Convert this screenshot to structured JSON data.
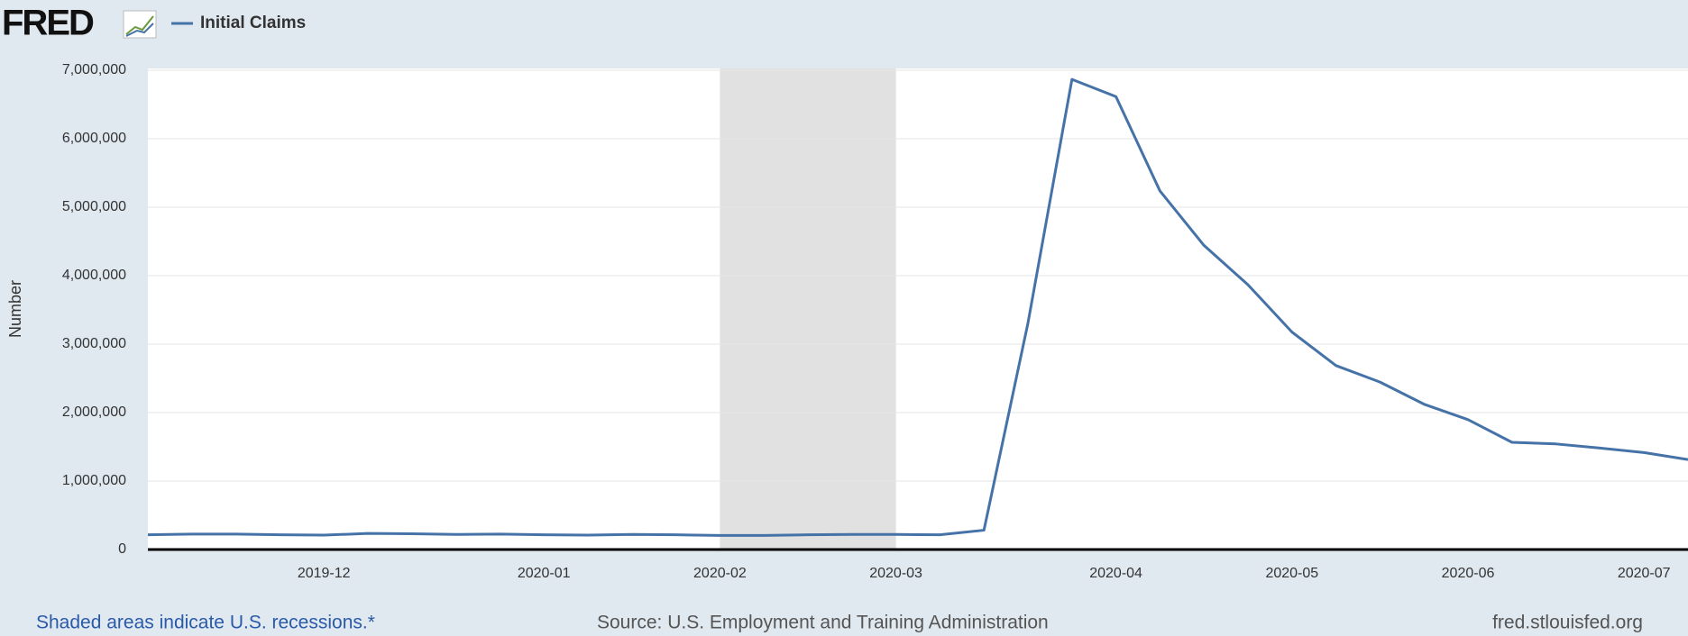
{
  "logo": "FRED",
  "chart_data": {
    "type": "line",
    "y_axis_label": "Number",
    "categories": [
      null,
      null,
      null,
      null,
      "2019-12",
      null,
      null,
      null,
      null,
      "2020-01",
      null,
      null,
      null,
      "2020-02",
      null,
      null,
      null,
      "2020-03",
      null,
      null,
      null,
      null,
      "2020-04",
      null,
      null,
      null,
      "2020-05",
      null,
      null,
      null,
      "2020-06",
      null,
      null,
      null,
      "2020-07",
      null
    ],
    "series": [
      {
        "name": "Initial Claims",
        "color": "#4572a7",
        "values": [
          215000,
          225000,
          225000,
          215000,
          210000,
          235000,
          230000,
          220000,
          225000,
          215000,
          210000,
          220000,
          215000,
          205000,
          205000,
          215000,
          220000,
          220000,
          215000,
          282000,
          3307000,
          6867000,
          6615000,
          5237000,
          4442000,
          3867000,
          3176000,
          2687000,
          2446000,
          2123000,
          1897000,
          1566000,
          1542000,
          1482000,
          1416000,
          1314000
        ]
      }
    ],
    "ylim": [
      0,
      7000000
    ],
    "yticks": [
      0,
      {
        "value": 1000000,
        "label": "1,000,000"
      },
      {
        "value": 2000000,
        "label": "2,000,000"
      },
      {
        "value": 3000000,
        "label": "3,000,000"
      },
      {
        "value": 4000000,
        "label": "4,000,000"
      },
      {
        "value": 5000000,
        "label": "5,000,000"
      },
      {
        "value": 6000000,
        "label": "6,000,000"
      },
      {
        "value": 7000000,
        "label": "7,000,000"
      }
    ],
    "grid": true,
    "recession_note": "Shaded areas indicate U.S. recessions.*",
    "source": "Source: U.S. Employment and Training Administration",
    "site": "fred.stlouisfed.org"
  }
}
